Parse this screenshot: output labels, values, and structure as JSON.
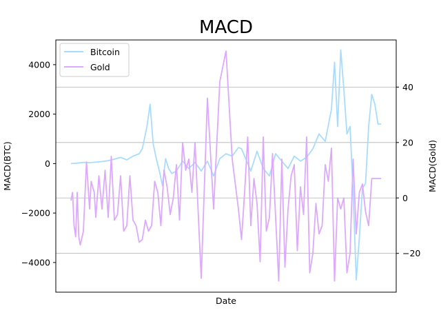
{
  "chart_data": {
    "type": "line",
    "title": "MACD",
    "xlabel": "Date",
    "ylabel_left": "MACD(BTC)",
    "ylabel_right": "MACD(Gold)",
    "ylim_left": [
      -5200,
      5000
    ],
    "ylim_right": [
      -34,
      57
    ],
    "yticks_left": [
      -4000,
      -2000,
      0,
      2000,
      4000
    ],
    "yticks_right": [
      -20,
      0,
      20,
      40
    ],
    "grid": "horizontal lines at right-axis ticks",
    "legend_placement": "top-left",
    "series": [
      {
        "name": "Bitcoin",
        "color": "#a8dcff",
        "axis": "left",
        "x": [
          0,
          0.02,
          0.04,
          0.06,
          0.08,
          0.1,
          0.12,
          0.14,
          0.16,
          0.18,
          0.2,
          0.22,
          0.23,
          0.245,
          0.255,
          0.265,
          0.275,
          0.285,
          0.295,
          0.305,
          0.315,
          0.325,
          0.34,
          0.36,
          0.38,
          0.4,
          0.42,
          0.44,
          0.46,
          0.48,
          0.5,
          0.52,
          0.54,
          0.55,
          0.56,
          0.58,
          0.6,
          0.62,
          0.64,
          0.66,
          0.68,
          0.7,
          0.72,
          0.74,
          0.76,
          0.78,
          0.8,
          0.82,
          0.84,
          0.85,
          0.86,
          0.87,
          0.88,
          0.89,
          0.9,
          0.91,
          0.92,
          0.93,
          0.94,
          0.95,
          0.96,
          0.97,
          0.98,
          0.99,
          1.0
        ],
        "values": [
          0,
          20,
          50,
          40,
          60,
          80,
          120,
          180,
          250,
          150,
          300,
          400,
          600,
          1500,
          2400,
          800,
          200,
          -300,
          -900,
          200,
          -200,
          -400,
          -300,
          100,
          -200,
          50,
          -300,
          100,
          -500,
          200,
          400,
          300,
          650,
          600,
          300,
          -300,
          500,
          -200,
          -500,
          400,
          100,
          -200,
          300,
          100,
          250,
          600,
          1200,
          900,
          2200,
          4100,
          1500,
          4600,
          3000,
          1200,
          1500,
          -1200,
          -4700,
          -3000,
          -1000,
          -800,
          1500,
          2800,
          2400,
          1600,
          1600
        ]
      },
      {
        "name": "Gold",
        "color": "#dda8ff",
        "axis": "right",
        "x": [
          0,
          0.005,
          0.01,
          0.015,
          0.02,
          0.025,
          0.03,
          0.04,
          0.05,
          0.06,
          0.065,
          0.07,
          0.075,
          0.08,
          0.09,
          0.1,
          0.11,
          0.12,
          0.13,
          0.14,
          0.15,
          0.16,
          0.17,
          0.18,
          0.19,
          0.2,
          0.21,
          0.22,
          0.23,
          0.24,
          0.25,
          0.26,
          0.27,
          0.28,
          0.29,
          0.3,
          0.31,
          0.32,
          0.33,
          0.34,
          0.35,
          0.36,
          0.37,
          0.38,
          0.39,
          0.4,
          0.42,
          0.44,
          0.46,
          0.48,
          0.5,
          0.52,
          0.54,
          0.55,
          0.56,
          0.57,
          0.58,
          0.59,
          0.6,
          0.61,
          0.62,
          0.63,
          0.64,
          0.65,
          0.66,
          0.67,
          0.68,
          0.69,
          0.7,
          0.71,
          0.72,
          0.73,
          0.74,
          0.75,
          0.76,
          0.77,
          0.78,
          0.79,
          0.8,
          0.81,
          0.82,
          0.83,
          0.84,
          0.85,
          0.86,
          0.87,
          0.88,
          0.89,
          0.9,
          0.91,
          0.92,
          0.93,
          0.94,
          0.95,
          0.96,
          0.97,
          0.98,
          0.99,
          1.0
        ],
        "values": [
          -1,
          2,
          -10,
          -14,
          2,
          -14,
          -17,
          -12,
          13,
          -4,
          6,
          4,
          2,
          -7,
          8,
          -4,
          10,
          -7,
          15,
          -8,
          -6,
          8,
          -12,
          -10,
          8,
          -8,
          -10,
          -16,
          -15,
          -8,
          -12,
          -10,
          6,
          2,
          -10,
          10,
          4,
          -6,
          0,
          12,
          -8,
          20,
          10,
          14,
          2,
          20,
          -29,
          36,
          -4,
          42,
          53,
          14,
          -4,
          -15,
          2,
          22,
          -10,
          7,
          -2,
          -23,
          22,
          -12,
          -7,
          16,
          -7,
          -30,
          14,
          -25,
          -4,
          8,
          12,
          -19,
          4,
          -6,
          22,
          -27,
          -20,
          -2,
          -13,
          -10,
          12,
          6,
          18,
          -30,
          0,
          -4,
          0,
          -27,
          -20,
          14,
          -13,
          2,
          5,
          -5,
          -10,
          7,
          7,
          7,
          7
        ]
      }
    ]
  }
}
